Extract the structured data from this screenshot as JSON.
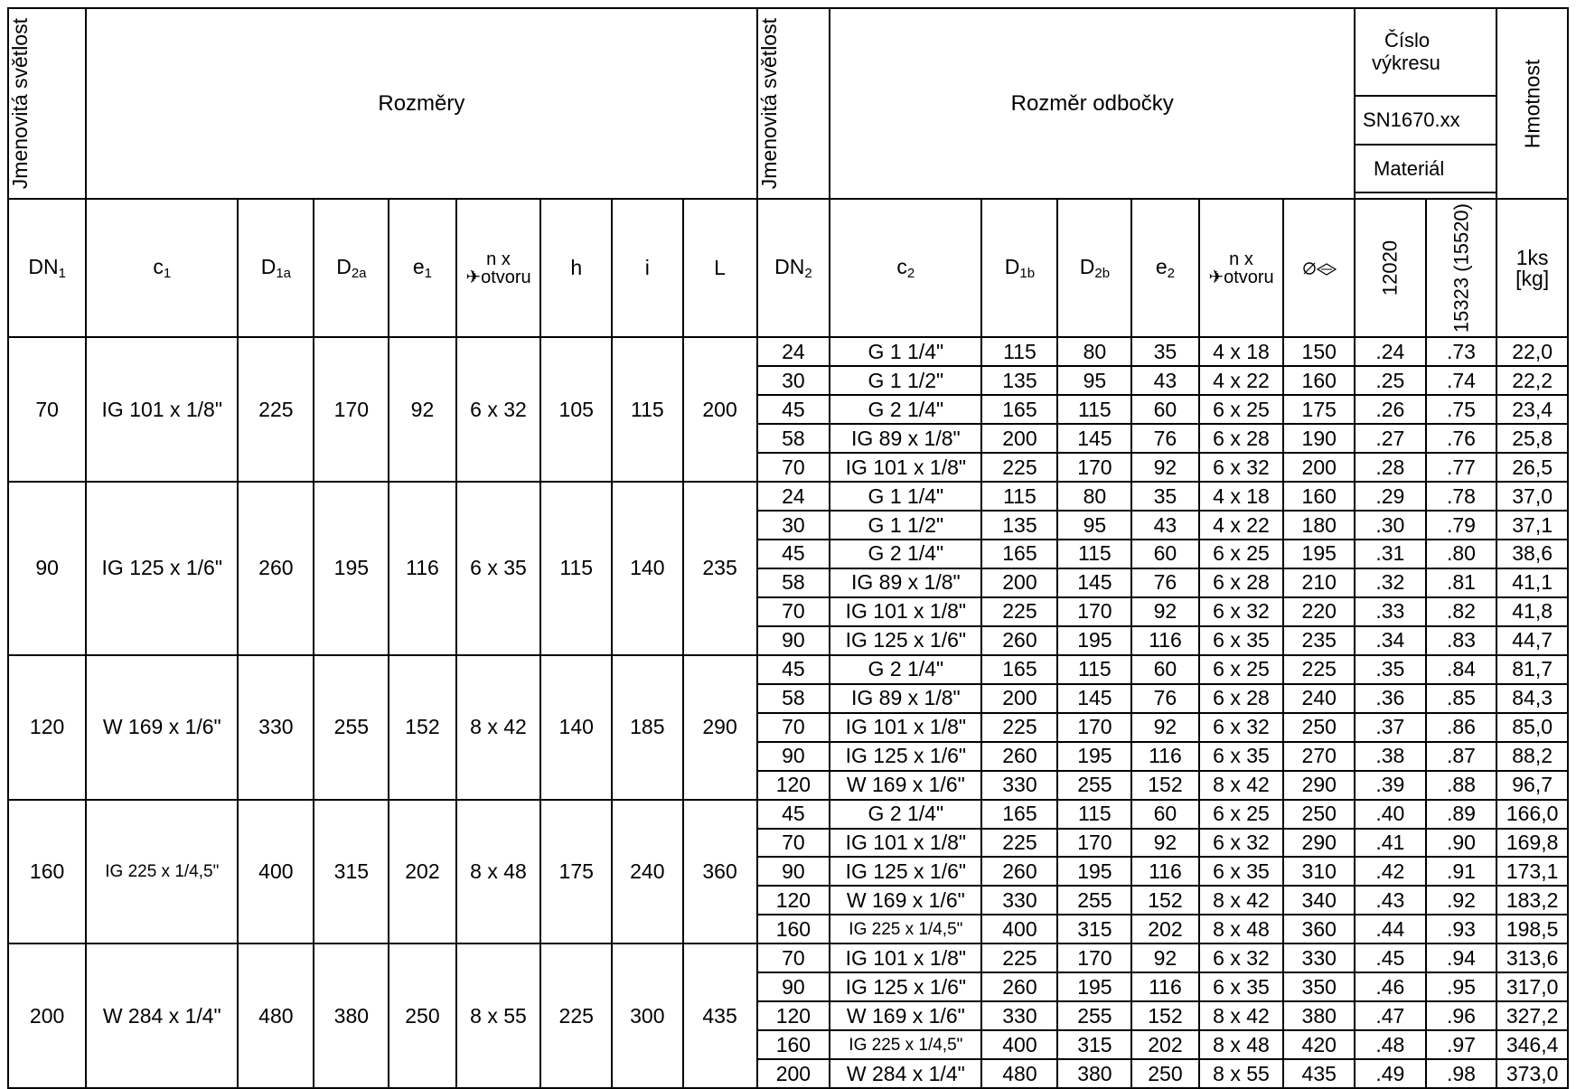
{
  "header": {
    "dn_nominal_left": "Jmenovitá světlost",
    "dimensions": "Rozměry",
    "dn_nominal_right": "Jmenovitá světlost",
    "branch_dimension": "Rozměr odbočky",
    "drawing_number_1": "Číslo",
    "drawing_number_2": "výkresu",
    "drawing_code": "SN1670.xx",
    "material": "Materiál",
    "weight": "Hmotnost",
    "mat_12020": "12020",
    "mat_15323": "15323 (15520)",
    "weight_unit_1": "1ks",
    "weight_unit_2": "[kg]",
    "holes_top": "n x",
    "holes_bottom": "✈otvoru",
    "col_h": "h",
    "col_i": "i",
    "col_L": "L",
    "hole_circle_icon": "bolt-circle-icon"
  },
  "groups": [
    {
      "dn1": "70",
      "c1": "IG 101 x 1/8\"",
      "d1a": "225",
      "d2a": "170",
      "e1": "92",
      "holes": "6 x 32",
      "h": "105",
      "i": "115",
      "L": "200",
      "rows": [
        [
          "24",
          "G 1 1/4\"",
          "115",
          "80",
          "35",
          "4 x 18",
          "150",
          ".24",
          ".73",
          "22,0"
        ],
        [
          "30",
          "G 1 1/2\"",
          "135",
          "95",
          "43",
          "4 x 22",
          "160",
          ".25",
          ".74",
          "22,2"
        ],
        [
          "45",
          "G 2 1/4\"",
          "165",
          "115",
          "60",
          "6 x 25",
          "175",
          ".26",
          ".75",
          "23,4"
        ],
        [
          "58",
          "IG 89 x 1/8\"",
          "200",
          "145",
          "76",
          "6 x 28",
          "190",
          ".27",
          ".76",
          "25,8"
        ],
        [
          "70",
          "IG 101 x 1/8\"",
          "225",
          "170",
          "92",
          "6 x 32",
          "200",
          ".28",
          ".77",
          "26,5"
        ]
      ]
    },
    {
      "dn1": "90",
      "c1": "IG 125 x 1/6\"",
      "d1a": "260",
      "d2a": "195",
      "e1": "116",
      "holes": "6 x 35",
      "h": "115",
      "i": "140",
      "L": "235",
      "rows": [
        [
          "24",
          "G 1 1/4\"",
          "115",
          "80",
          "35",
          "4 x 18",
          "160",
          ".29",
          ".78",
          "37,0"
        ],
        [
          "30",
          "G 1 1/2\"",
          "135",
          "95",
          "43",
          "4 x 22",
          "180",
          ".30",
          ".79",
          "37,1"
        ],
        [
          "45",
          "G 2 1/4\"",
          "165",
          "115",
          "60",
          "6 x 25",
          "195",
          ".31",
          ".80",
          "38,6"
        ],
        [
          "58",
          "IG 89 x 1/8\"",
          "200",
          "145",
          "76",
          "6 x 28",
          "210",
          ".32",
          ".81",
          "41,1"
        ],
        [
          "70",
          "IG 101 x 1/8\"",
          "225",
          "170",
          "92",
          "6 x 32",
          "220",
          ".33",
          ".82",
          "41,8"
        ],
        [
          "90",
          "IG 125 x 1/6\"",
          "260",
          "195",
          "116",
          "6 x 35",
          "235",
          ".34",
          ".83",
          "44,7"
        ]
      ]
    },
    {
      "dn1": "120",
      "c1": "W 169 x 1/6\"",
      "d1a": "330",
      "d2a": "255",
      "e1": "152",
      "holes": "8 x 42",
      "h": "140",
      "i": "185",
      "L": "290",
      "rows": [
        [
          "45",
          "G 2 1/4\"",
          "165",
          "115",
          "60",
          "6 x 25",
          "225",
          ".35",
          ".84",
          "81,7"
        ],
        [
          "58",
          "IG 89 x 1/8\"",
          "200",
          "145",
          "76",
          "6 x 28",
          "240",
          ".36",
          ".85",
          "84,3"
        ],
        [
          "70",
          "IG 101 x 1/8\"",
          "225",
          "170",
          "92",
          "6 x 32",
          "250",
          ".37",
          ".86",
          "85,0"
        ],
        [
          "90",
          "IG 125 x 1/6\"",
          "260",
          "195",
          "116",
          "6 x 35",
          "270",
          ".38",
          ".87",
          "88,2"
        ],
        [
          "120",
          "W 169 x 1/6\"",
          "330",
          "255",
          "152",
          "8 x 42",
          "290",
          ".39",
          ".88",
          "96,7"
        ]
      ]
    },
    {
      "dn1": "160",
      "c1": "IG 225 x 1/4,5\"",
      "d1a": "400",
      "d2a": "315",
      "e1": "202",
      "holes": "8 x 48",
      "h": "175",
      "i": "240",
      "L": "360",
      "rows": [
        [
          "45",
          "G 2 1/4\"",
          "165",
          "115",
          "60",
          "6 x 25",
          "250",
          ".40",
          ".89",
          "166,0"
        ],
        [
          "70",
          "IG 101 x 1/8\"",
          "225",
          "170",
          "92",
          "6 x 32",
          "290",
          ".41",
          ".90",
          "169,8"
        ],
        [
          "90",
          "IG 125 x 1/6\"",
          "260",
          "195",
          "116",
          "6 x 35",
          "310",
          ".42",
          ".91",
          "173,1"
        ],
        [
          "120",
          "W 169 x 1/6\"",
          "330",
          "255",
          "152",
          "8 x 42",
          "340",
          ".43",
          ".92",
          "183,2"
        ],
        [
          "160",
          "IG 225 x 1/4,5\"",
          "400",
          "315",
          "202",
          "8 x 48",
          "360",
          ".44",
          ".93",
          "198,5"
        ]
      ]
    },
    {
      "dn1": "200",
      "c1": "W 284 x 1/4\"",
      "d1a": "480",
      "d2a": "380",
      "e1": "250",
      "holes": "8 x 55",
      "h": "225",
      "i": "300",
      "L": "435",
      "rows": [
        [
          "70",
          "IG 101 x 1/8\"",
          "225",
          "170",
          "92",
          "6 x 32",
          "330",
          ".45",
          ".94",
          "313,6"
        ],
        [
          "90",
          "IG 125 x 1/6\"",
          "260",
          "195",
          "116",
          "6 x 35",
          "350",
          ".46",
          ".95",
          "317,0"
        ],
        [
          "120",
          "W 169 x 1/6\"",
          "330",
          "255",
          "152",
          "8 x 42",
          "380",
          ".47",
          ".96",
          "327,2"
        ],
        [
          "160",
          "IG 225 x 1/4,5\"",
          "400",
          "315",
          "202",
          "8 x 48",
          "420",
          ".48",
          ".97",
          "346,4"
        ],
        [
          "200",
          "W 284 x 1/4\"",
          "480",
          "380",
          "250",
          "8 x 55",
          "435",
          ".49",
          ".98",
          "373,0"
        ]
      ]
    }
  ]
}
